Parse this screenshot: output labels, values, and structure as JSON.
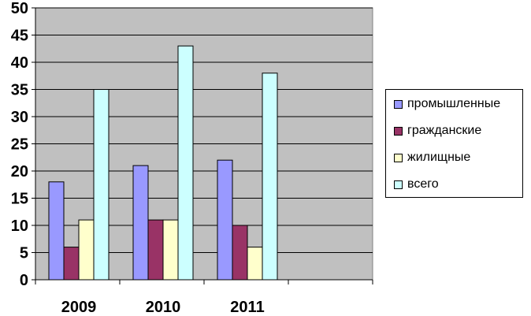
{
  "chart_data": {
    "type": "bar",
    "categories": [
      "2009",
      "2010",
      "2011",
      ""
    ],
    "series": [
      {
        "name": "промышленные",
        "values": [
          18,
          21,
          22,
          null
        ],
        "color": "#9999FF"
      },
      {
        "name": "гражданские",
        "values": [
          6,
          11,
          10,
          null
        ],
        "color": "#993366"
      },
      {
        "name": "жилищные",
        "values": [
          11,
          11,
          6,
          null
        ],
        "color": "#FFFFCC"
      },
      {
        "name": "всего",
        "values": [
          35,
          43,
          38,
          null
        ],
        "color": "#CCFFFF"
      }
    ],
    "title": "",
    "xlabel": "",
    "ylabel": "",
    "ylim": [
      0,
      50
    ],
    "yticks": [
      0,
      5,
      10,
      15,
      20,
      25,
      30,
      35,
      40,
      45,
      50
    ],
    "grid": true,
    "plot_background": "#C0C0C0",
    "legend_position": "right"
  }
}
